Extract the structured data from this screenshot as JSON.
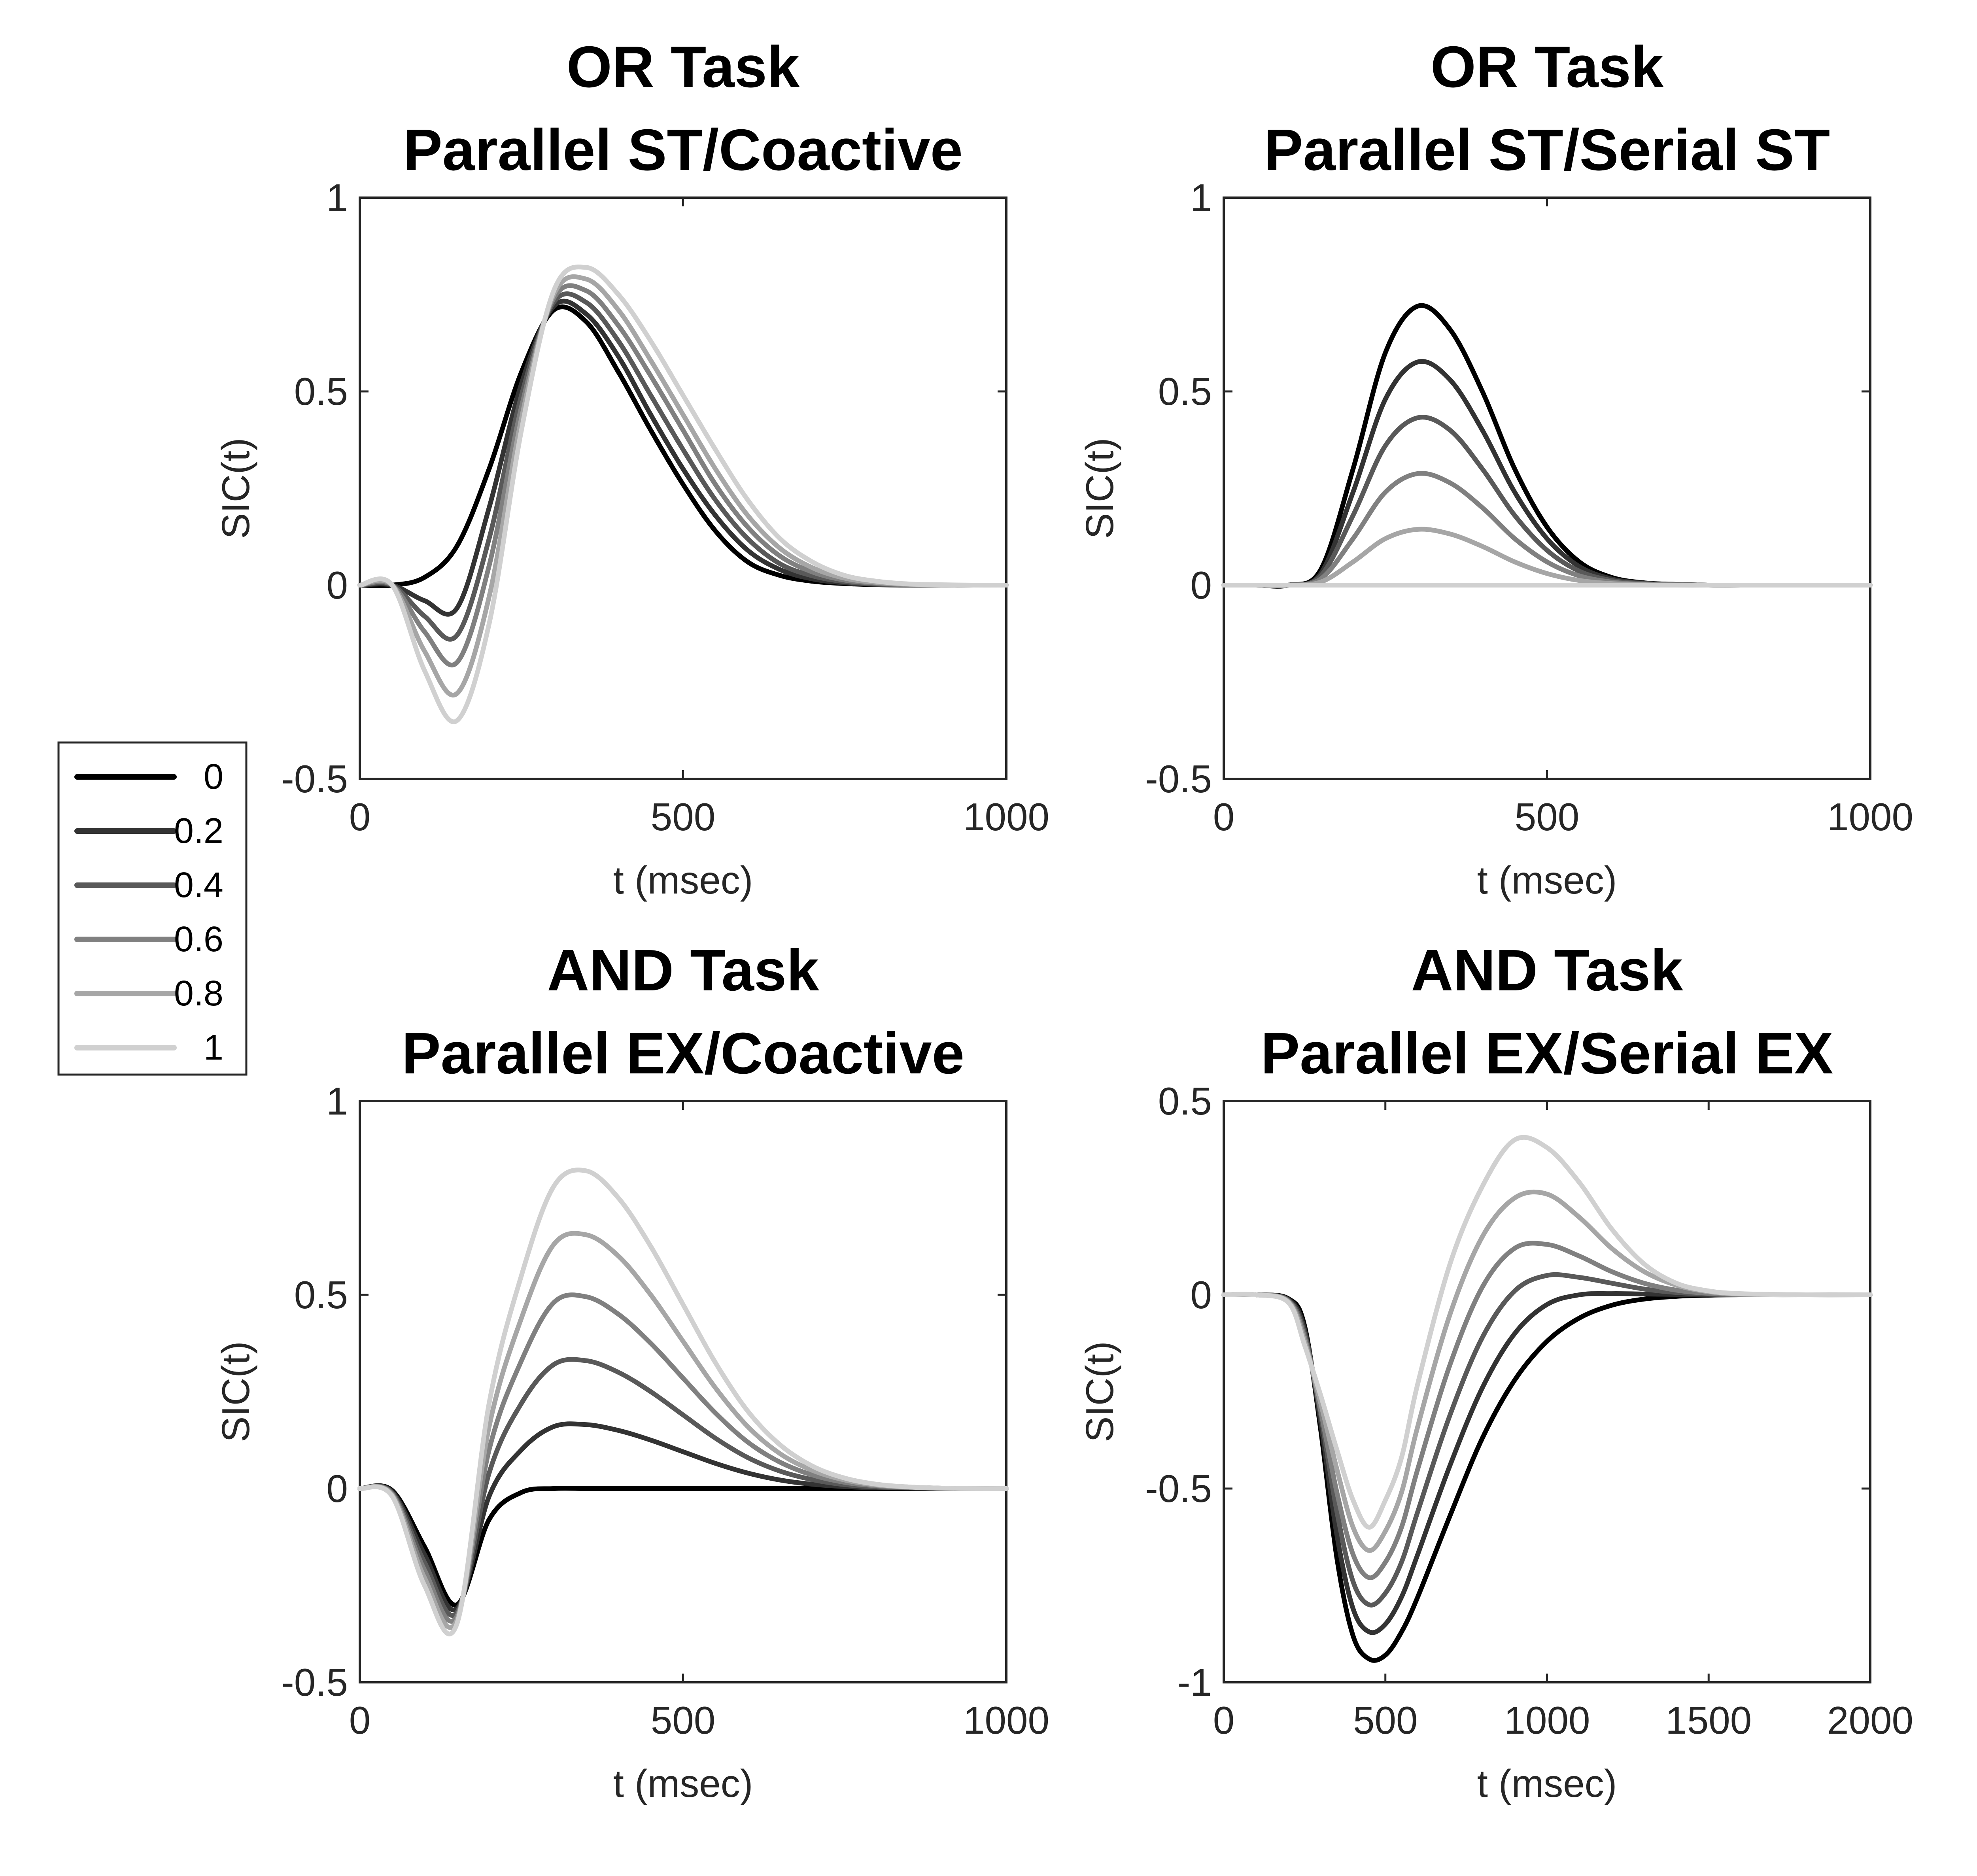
{
  "legend": {
    "entries": [
      {
        "label": "0",
        "color": "#000000"
      },
      {
        "label": "0.2",
        "color": "#333333"
      },
      {
        "label": "0.4",
        "color": "#595959"
      },
      {
        "label": "0.6",
        "color": "#808080"
      },
      {
        "label": "0.8",
        "color": "#a6a6a6"
      },
      {
        "label": "1",
        "color": "#d0d0d0"
      }
    ]
  },
  "chart_data": [
    {
      "type": "line",
      "title": [
        "OR Task",
        "Parallel ST/Coactive"
      ],
      "xlabel": "t (msec)",
      "ylabel": "SIC(t)",
      "xlim": [
        0,
        1000
      ],
      "ylim": [
        -0.5,
        1
      ],
      "xticks": [
        "0",
        "500",
        "1000"
      ],
      "yticks": [
        "-0.5",
        "0",
        "0.5",
        "1"
      ],
      "x": [
        0,
        50,
        100,
        150,
        200,
        250,
        300,
        350,
        400,
        450,
        500,
        550,
        600,
        650,
        700,
        750,
        800,
        850,
        900,
        950,
        1000
      ],
      "series": [
        {
          "name": "0",
          "values": [
            0,
            0,
            0.02,
            0.1,
            0.3,
            0.55,
            0.71,
            0.68,
            0.55,
            0.4,
            0.26,
            0.14,
            0.06,
            0.025,
            0.01,
            0.004,
            0.001,
            0,
            0,
            0,
            0
          ]
        },
        {
          "name": "0.2",
          "values": [
            0,
            0,
            -0.04,
            -0.06,
            0.2,
            0.52,
            0.72,
            0.7,
            0.59,
            0.44,
            0.3,
            0.18,
            0.09,
            0.04,
            0.016,
            0.006,
            0.002,
            0,
            0,
            0,
            0
          ]
        },
        {
          "name": "0.4",
          "values": [
            0,
            0,
            -0.08,
            -0.13,
            0.12,
            0.49,
            0.73,
            0.73,
            0.63,
            0.49,
            0.35,
            0.22,
            0.12,
            0.055,
            0.024,
            0.009,
            0.003,
            0.001,
            0,
            0,
            0
          ]
        },
        {
          "name": "0.6",
          "values": [
            0,
            0,
            -0.12,
            -0.2,
            0.05,
            0.46,
            0.74,
            0.76,
            0.67,
            0.54,
            0.4,
            0.26,
            0.15,
            0.075,
            0.034,
            0.013,
            0.005,
            0.001,
            0,
            0,
            0
          ]
        },
        {
          "name": "0.8",
          "values": [
            0,
            0,
            -0.17,
            -0.28,
            -0.03,
            0.43,
            0.75,
            0.79,
            0.71,
            0.58,
            0.44,
            0.3,
            0.18,
            0.095,
            0.045,
            0.018,
            0.007,
            0.002,
            0,
            0,
            0
          ]
        },
        {
          "name": "1",
          "values": [
            0,
            0,
            -0.22,
            -0.35,
            -0.1,
            0.4,
            0.76,
            0.82,
            0.75,
            0.63,
            0.49,
            0.35,
            0.22,
            0.12,
            0.06,
            0.025,
            0.01,
            0.003,
            0.001,
            0,
            0
          ]
        }
      ]
    },
    {
      "type": "line",
      "title": [
        "OR Task",
        "Parallel ST/Serial ST"
      ],
      "xlabel": "t (msec)",
      "ylabel": "SIC(t)",
      "xlim": [
        0,
        1000
      ],
      "ylim": [
        -0.5,
        1
      ],
      "xticks": [
        "0",
        "500",
        "1000"
      ],
      "yticks": [
        "-0.5",
        "0",
        "0.5",
        "1"
      ],
      "x": [
        0,
        50,
        100,
        150,
        200,
        250,
        300,
        350,
        400,
        450,
        500,
        550,
        600,
        650,
        700,
        750,
        800,
        850,
        900,
        950,
        1000
      ],
      "series": [
        {
          "name": "0",
          "values": [
            0,
            0,
            0,
            0.04,
            0.3,
            0.6,
            0.72,
            0.66,
            0.5,
            0.3,
            0.15,
            0.06,
            0.02,
            0.006,
            0.002,
            0,
            0,
            0,
            0,
            0,
            0
          ]
        },
        {
          "name": "0.2",
          "values": [
            0,
            0,
            0,
            0.03,
            0.24,
            0.48,
            0.576,
            0.53,
            0.4,
            0.24,
            0.12,
            0.048,
            0.016,
            0.005,
            0.002,
            0,
            0,
            0,
            0,
            0,
            0
          ]
        },
        {
          "name": "0.4",
          "values": [
            0,
            0,
            0,
            0.024,
            0.18,
            0.36,
            0.432,
            0.4,
            0.3,
            0.18,
            0.09,
            0.036,
            0.012,
            0.004,
            0.001,
            0,
            0,
            0,
            0,
            0,
            0
          ]
        },
        {
          "name": "0.6",
          "values": [
            0,
            0,
            0,
            0.016,
            0.12,
            0.24,
            0.288,
            0.264,
            0.2,
            0.12,
            0.06,
            0.024,
            0.008,
            0.002,
            0.001,
            0,
            0,
            0,
            0,
            0,
            0
          ]
        },
        {
          "name": "0.8",
          "values": [
            0,
            0,
            0,
            0.008,
            0.06,
            0.12,
            0.144,
            0.132,
            0.1,
            0.06,
            0.03,
            0.012,
            0.004,
            0.001,
            0,
            0,
            0,
            0,
            0,
            0,
            0
          ]
        },
        {
          "name": "1",
          "values": [
            0,
            0,
            0,
            0,
            0,
            0,
            0,
            0,
            0,
            0,
            0,
            0,
            0,
            0,
            0,
            0,
            0,
            0,
            0,
            0,
            0
          ]
        }
      ]
    },
    {
      "type": "line",
      "title": [
        "AND Task",
        "Parallel EX/Coactive"
      ],
      "xlabel": "t (msec)",
      "ylabel": "SIC(t)",
      "xlim": [
        0,
        1000
      ],
      "ylim": [
        -0.5,
        1
      ],
      "xticks": [
        "0",
        "500",
        "1000"
      ],
      "yticks": [
        "-0.5",
        "0",
        "0.5",
        "1"
      ],
      "x": [
        0,
        50,
        100,
        150,
        200,
        250,
        300,
        350,
        400,
        450,
        500,
        550,
        600,
        650,
        700,
        750,
        800,
        850,
        900,
        950,
        1000
      ],
      "series": [
        {
          "name": "0",
          "values": [
            0,
            -0.005,
            -0.15,
            -0.3,
            -0.08,
            -0.01,
            0,
            0,
            0,
            0,
            0,
            0,
            0,
            0,
            0,
            0,
            0,
            0,
            0,
            0,
            0
          ]
        },
        {
          "name": "0.2",
          "values": [
            0,
            -0.008,
            -0.17,
            -0.31,
            -0.02,
            0.1,
            0.16,
            0.165,
            0.15,
            0.125,
            0.095,
            0.065,
            0.04,
            0.022,
            0.011,
            0.005,
            0.002,
            0.001,
            0,
            0,
            0
          ]
        },
        {
          "name": "0.4",
          "values": [
            0,
            -0.011,
            -0.19,
            -0.32,
            0.04,
            0.22,
            0.32,
            0.33,
            0.3,
            0.25,
            0.19,
            0.13,
            0.08,
            0.045,
            0.023,
            0.01,
            0.004,
            0.002,
            0,
            0,
            0
          ]
        },
        {
          "name": "0.6",
          "values": [
            0,
            -0.014,
            -0.21,
            -0.33,
            0.1,
            0.33,
            0.48,
            0.495,
            0.45,
            0.375,
            0.285,
            0.195,
            0.12,
            0.068,
            0.035,
            0.016,
            0.007,
            0.003,
            0.001,
            0,
            0
          ]
        },
        {
          "name": "0.8",
          "values": [
            0,
            -0.017,
            -0.23,
            -0.34,
            0.16,
            0.44,
            0.63,
            0.655,
            0.6,
            0.5,
            0.38,
            0.26,
            0.16,
            0.09,
            0.047,
            0.022,
            0.009,
            0.004,
            0.001,
            0,
            0
          ]
        },
        {
          "name": "1",
          "values": [
            0,
            -0.02,
            -0.25,
            -0.35,
            0.22,
            0.55,
            0.78,
            0.82,
            0.75,
            0.625,
            0.475,
            0.325,
            0.2,
            0.113,
            0.058,
            0.027,
            0.011,
            0.004,
            0.001,
            0,
            0
          ]
        }
      ]
    },
    {
      "type": "line",
      "title": [
        "AND Task",
        "Parallel EX/Serial EX"
      ],
      "xlabel": "t (msec)",
      "ylabel": "SIC(t)",
      "xlim": [
        0,
        2000
      ],
      "ylim": [
        -1,
        0.5
      ],
      "xticks": [
        "0",
        "500",
        "1000",
        "1500",
        "2000"
      ],
      "yticks": [
        "-1",
        "-0.5",
        "0",
        "0.5"
      ],
      "x": [
        0,
        100,
        200,
        250,
        300,
        350,
        400,
        450,
        500,
        550,
        600,
        700,
        800,
        900,
        1000,
        1100,
        1200,
        1300,
        1400,
        1500,
        1600,
        1800,
        2000
      ],
      "series": [
        {
          "name": "0",
          "values": [
            0,
            0,
            -0.01,
            -0.08,
            -0.35,
            -0.68,
            -0.88,
            -0.94,
            -0.93,
            -0.87,
            -0.78,
            -0.57,
            -0.37,
            -0.22,
            -0.12,
            -0.06,
            -0.027,
            -0.011,
            -0.004,
            -0.001,
            0,
            0,
            0
          ]
        },
        {
          "name": "0.2",
          "values": [
            0,
            0,
            -0.012,
            -0.09,
            -0.33,
            -0.62,
            -0.81,
            -0.87,
            -0.85,
            -0.78,
            -0.67,
            -0.44,
            -0.24,
            -0.1,
            -0.025,
            0,
            0.003,
            0.002,
            0.001,
            0,
            0,
            0,
            0
          ]
        },
        {
          "name": "0.4",
          "values": [
            0,
            0,
            -0.014,
            -0.1,
            -0.31,
            -0.56,
            -0.74,
            -0.8,
            -0.77,
            -0.69,
            -0.56,
            -0.31,
            -0.11,
            0.01,
            0.05,
            0.045,
            0.03,
            0.015,
            0.006,
            0.002,
            0,
            0,
            0
          ]
        },
        {
          "name": "0.6",
          "values": [
            0,
            0,
            -0.016,
            -0.11,
            -0.3,
            -0.51,
            -0.67,
            -0.73,
            -0.69,
            -0.6,
            -0.45,
            -0.18,
            0.02,
            0.12,
            0.13,
            0.1,
            0.06,
            0.03,
            0.012,
            0.004,
            0.001,
            0,
            0
          ]
        },
        {
          "name": "0.8",
          "values": [
            0,
            0,
            -0.018,
            -0.12,
            -0.28,
            -0.45,
            -0.6,
            -0.66,
            -0.61,
            -0.51,
            -0.34,
            -0.05,
            0.15,
            0.25,
            0.26,
            0.2,
            0.12,
            0.06,
            0.025,
            0.008,
            0.002,
            0,
            0
          ]
        },
        {
          "name": "1",
          "values": [
            0,
            0,
            -0.02,
            -0.13,
            -0.26,
            -0.4,
            -0.53,
            -0.6,
            -0.53,
            -0.42,
            -0.23,
            0.08,
            0.28,
            0.4,
            0.38,
            0.29,
            0.17,
            0.08,
            0.03,
            0.01,
            0.003,
            0,
            0
          ]
        }
      ]
    }
  ]
}
